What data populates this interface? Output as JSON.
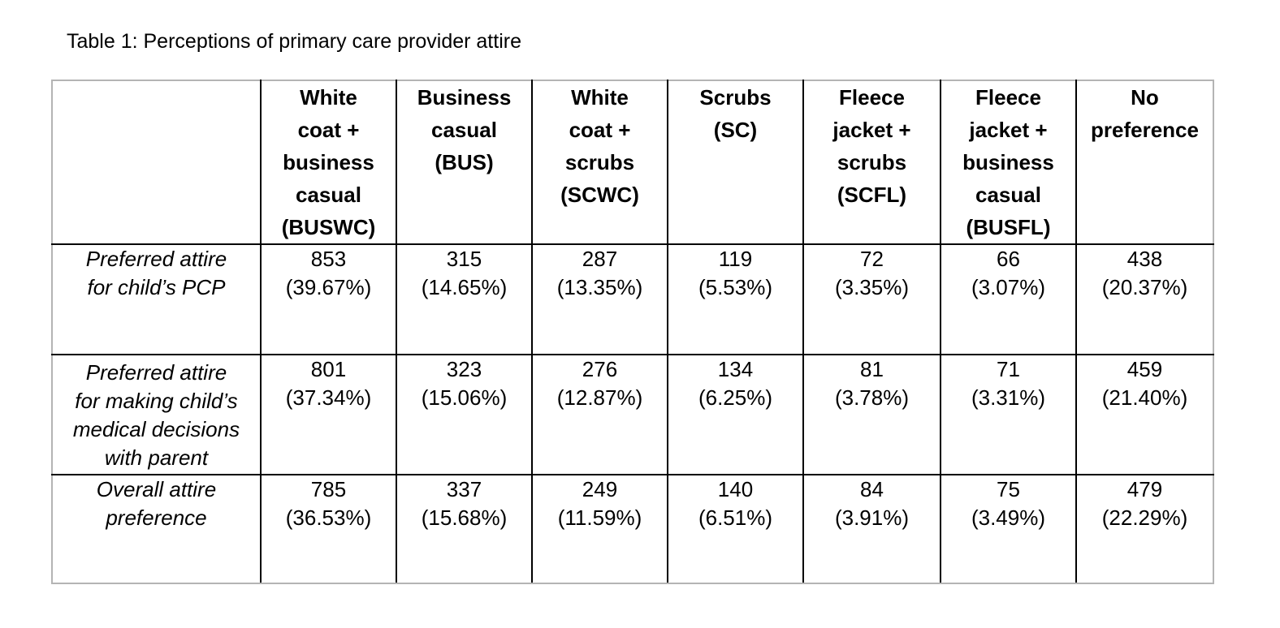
{
  "caption": "Table 1:  Perceptions of primary care provider attire",
  "columns": [
    {
      "lines": [
        "White",
        "coat +",
        "business",
        "casual",
        "(BUSWC)"
      ]
    },
    {
      "lines": [
        "Business",
        "casual",
        "(BUS)"
      ]
    },
    {
      "lines": [
        "White",
        "coat +",
        "scrubs",
        "(SCWC)"
      ]
    },
    {
      "lines": [
        "Scrubs",
        "(SC)"
      ]
    },
    {
      "lines": [
        "Fleece",
        "jacket +",
        "scrubs",
        "(SCFL)"
      ]
    },
    {
      "lines": [
        "Fleece",
        "jacket +",
        "business",
        "casual",
        "(BUSFL)"
      ]
    },
    {
      "lines": [
        "No",
        "preference"
      ]
    }
  ],
  "rows": [
    {
      "label_lines": [
        "Preferred attire",
        "for child’s PCP"
      ],
      "cells": [
        {
          "count": "853",
          "pct": "(39.67%)"
        },
        {
          "count": "315",
          "pct": "(14.65%)"
        },
        {
          "count": "287",
          "pct": "(13.35%)"
        },
        {
          "count": "119",
          "pct": "(5.53%)"
        },
        {
          "count": "72",
          "pct": "(3.35%)"
        },
        {
          "count": "66",
          "pct": "(3.07%)"
        },
        {
          "count": "438",
          "pct": "(20.37%)"
        }
      ]
    },
    {
      "label_lines": [
        "Preferred attire",
        "for making child’s",
        "medical decisions",
        "with parent"
      ],
      "cells": [
        {
          "count": "801",
          "pct": "(37.34%)"
        },
        {
          "count": "323",
          "pct": "(15.06%)"
        },
        {
          "count": "276",
          "pct": "(12.87%)"
        },
        {
          "count": "134",
          "pct": "(6.25%)"
        },
        {
          "count": "81",
          "pct": "(3.78%)"
        },
        {
          "count": "71",
          "pct": "(3.31%)"
        },
        {
          "count": "459",
          "pct": "(21.40%)"
        }
      ]
    },
    {
      "label_lines": [
        "Overall attire",
        "preference"
      ],
      "cells": [
        {
          "count": "785",
          "pct": "(36.53%)"
        },
        {
          "count": "337",
          "pct": "(15.68%)"
        },
        {
          "count": "249",
          "pct": "(11.59%)"
        },
        {
          "count": "140",
          "pct": "(6.51%)"
        },
        {
          "count": "84",
          "pct": "(3.91%)"
        },
        {
          "count": "75",
          "pct": "(3.49%)"
        },
        {
          "count": "479",
          "pct": "(22.29%)"
        }
      ]
    }
  ]
}
